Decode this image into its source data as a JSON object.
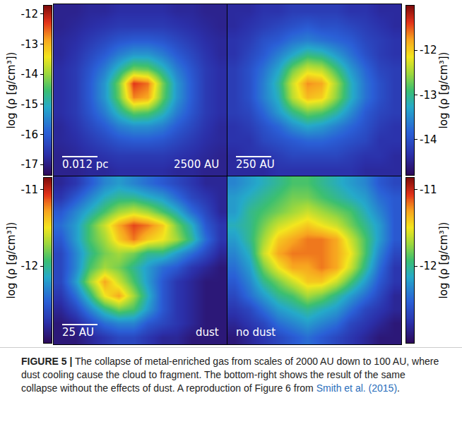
{
  "chart_data": {
    "type": "heatmap",
    "tick_labels": false,
    "panels": [
      {
        "scale_bar": "0.012 pc",
        "scale_bar_alt": "2500 AU",
        "colorbar": {
          "range": [
            -17.35,
            -11.72
          ],
          "ticks": [
            -12,
            -13,
            -14,
            -15,
            -16,
            -17
          ],
          "title": "log (ρ [g/cm³])"
        },
        "cells": [
          [
            -16.9,
            -16.9,
            -16.8,
            -16.8,
            -16.7,
            -16.7,
            -16.7,
            -16.7,
            -16.8,
            -16.8,
            -16.9,
            -16.9
          ],
          [
            -16.9,
            -16.8,
            -16.7,
            -16.6,
            -16.5,
            -16.5,
            -16.5,
            -16.5,
            -16.6,
            -16.7,
            -16.8,
            -16.9
          ],
          [
            -16.8,
            -16.7,
            -16.5,
            -16.3,
            -16.1,
            -16.0,
            -16.0,
            -16.1,
            -16.3,
            -16.5,
            -16.7,
            -16.8
          ],
          [
            -16.8,
            -16.6,
            -16.3,
            -16.0,
            -15.6,
            -15.3,
            -15.3,
            -15.6,
            -16.0,
            -16.3,
            -16.6,
            -16.8
          ],
          [
            -16.7,
            -16.5,
            -16.1,
            -15.6,
            -14.9,
            -14.2,
            -14.3,
            -14.9,
            -15.6,
            -16.1,
            -16.5,
            -16.7
          ],
          [
            -16.7,
            -16.5,
            -16.0,
            -15.3,
            -14.2,
            -12.3,
            -12.6,
            -14.2,
            -15.3,
            -16.0,
            -16.5,
            -16.7
          ],
          [
            -16.7,
            -16.5,
            -16.0,
            -15.3,
            -14.3,
            -12.7,
            -12.9,
            -14.3,
            -15.3,
            -16.0,
            -16.5,
            -16.7
          ],
          [
            -16.7,
            -16.5,
            -16.1,
            -15.6,
            -14.9,
            -14.3,
            -14.4,
            -14.9,
            -15.6,
            -16.1,
            -16.5,
            -16.7
          ],
          [
            -16.8,
            -16.6,
            -16.3,
            -16.0,
            -15.6,
            -15.4,
            -15.4,
            -15.6,
            -16.0,
            -16.3,
            -16.6,
            -16.8
          ],
          [
            -16.8,
            -16.7,
            -16.5,
            -16.3,
            -16.1,
            -16.0,
            -16.0,
            -16.1,
            -16.3,
            -16.5,
            -16.7,
            -16.8
          ],
          [
            -16.9,
            -16.8,
            -16.7,
            -16.6,
            -16.5,
            -16.5,
            -16.5,
            -16.5,
            -16.6,
            -16.7,
            -16.8,
            -16.9
          ],
          [
            -16.9,
            -16.9,
            -16.8,
            -16.8,
            -16.7,
            -16.7,
            -16.7,
            -16.7,
            -16.8,
            -16.8,
            -16.9,
            -16.9
          ]
        ]
      },
      {
        "scale_bar": "250 AU",
        "colorbar": {
          "range": [
            -14.8,
            -11.0
          ],
          "ticks": [
            -12,
            -13,
            -14
          ],
          "title": "log (ρ [g/cm³])"
        },
        "cells": [
          [
            -14.4,
            -14.4,
            -14.3,
            -14.3,
            -14.2,
            -14.2,
            -14.2,
            -14.2,
            -14.3,
            -14.3,
            -14.4,
            -14.4
          ],
          [
            -14.4,
            -14.3,
            -14.2,
            -14.1,
            -14.0,
            -13.9,
            -14.0,
            -14.0,
            -14.1,
            -14.2,
            -14.3,
            -14.4
          ],
          [
            -14.3,
            -14.2,
            -14.0,
            -13.9,
            -13.7,
            -13.6,
            -13.7,
            -13.8,
            -13.9,
            -14.1,
            -14.2,
            -14.3
          ],
          [
            -14.3,
            -14.1,
            -13.9,
            -13.6,
            -13.3,
            -13.0,
            -13.1,
            -13.4,
            -13.7,
            -14.0,
            -14.2,
            -14.3
          ],
          [
            -14.2,
            -14.0,
            -13.7,
            -13.3,
            -12.7,
            -12.3,
            -12.4,
            -12.9,
            -13.4,
            -13.8,
            -14.1,
            -14.2
          ],
          [
            -14.2,
            -14.0,
            -13.6,
            -13.1,
            -12.3,
            -11.7,
            -11.8,
            -12.5,
            -13.2,
            -13.7,
            -14.0,
            -14.2
          ],
          [
            -14.2,
            -14.0,
            -13.6,
            -13.2,
            -12.4,
            -11.9,
            -12.0,
            -12.6,
            -13.2,
            -13.7,
            -14.0,
            -14.2
          ],
          [
            -14.2,
            -14.1,
            -13.8,
            -13.4,
            -13.0,
            -12.7,
            -12.8,
            -13.1,
            -13.5,
            -13.9,
            -14.1,
            -14.2
          ],
          [
            -14.3,
            -14.2,
            -14.0,
            -13.8,
            -13.5,
            -13.3,
            -13.4,
            -13.6,
            -13.8,
            -14.0,
            -14.2,
            -14.3
          ],
          [
            -14.3,
            -14.3,
            -14.1,
            -14.0,
            -13.9,
            -13.8,
            -13.8,
            -13.9,
            -14.0,
            -14.1,
            -14.3,
            -14.3
          ],
          [
            -14.4,
            -14.3,
            -14.3,
            -14.2,
            -14.1,
            -14.1,
            -14.1,
            -14.1,
            -14.2,
            -14.3,
            -14.3,
            -14.4
          ],
          [
            -14.4,
            -14.4,
            -14.4,
            -14.3,
            -14.3,
            -14.3,
            -14.3,
            -14.3,
            -14.3,
            -14.4,
            -14.4,
            -14.4
          ]
        ]
      },
      {
        "scale_bar": "25 AU",
        "label": "dust",
        "colorbar": {
          "range": [
            -13.0,
            -10.85
          ],
          "ticks": [
            -11,
            -12
          ],
          "title": "log (ρ [g/cm³])"
        },
        "cells": [
          [
            -12.8,
            -12.7,
            -12.5,
            -12.3,
            -12.2,
            -12.3,
            -12.4,
            -12.5,
            -12.6,
            -12.7,
            -12.8,
            -12.8
          ],
          [
            -12.7,
            -12.5,
            -12.3,
            -12.1,
            -12.0,
            -12.0,
            -12.1,
            -12.2,
            -12.4,
            -12.6,
            -12.7,
            -12.8
          ],
          [
            -12.5,
            -12.3,
            -12.1,
            -11.9,
            -11.7,
            -11.6,
            -11.7,
            -11.9,
            -12.1,
            -12.4,
            -12.6,
            -12.8
          ],
          [
            -12.4,
            -12.2,
            -11.9,
            -11.6,
            -11.3,
            -11.1,
            -11.2,
            -11.4,
            -11.8,
            -12.1,
            -12.5,
            -12.7
          ],
          [
            -12.5,
            -12.2,
            -11.9,
            -11.7,
            -11.4,
            -11.2,
            -11.4,
            -11.5,
            -11.7,
            -12.0,
            -12.4,
            -12.7
          ],
          [
            -12.6,
            -12.3,
            -12.0,
            -11.8,
            -11.7,
            -11.8,
            -12.0,
            -12.0,
            -12.2,
            -12.4,
            -12.6,
            -12.8
          ],
          [
            -12.6,
            -12.3,
            -11.9,
            -11.7,
            -11.8,
            -12.0,
            -12.2,
            -12.4,
            -12.5,
            -12.7,
            -12.8,
            -12.9
          ],
          [
            -12.6,
            -12.2,
            -11.7,
            -11.3,
            -11.6,
            -11.9,
            -12.2,
            -12.5,
            -12.7,
            -12.8,
            -12.9,
            -12.9
          ],
          [
            -12.7,
            -12.4,
            -12.0,
            -11.5,
            -11.3,
            -11.7,
            -12.1,
            -12.5,
            -12.7,
            -12.8,
            -12.9,
            -12.9
          ],
          [
            -12.8,
            -12.6,
            -12.3,
            -12.0,
            -11.8,
            -11.9,
            -12.2,
            -12.5,
            -12.7,
            -12.8,
            -12.9,
            -12.9
          ],
          [
            -12.9,
            -12.8,
            -12.6,
            -12.4,
            -12.3,
            -12.3,
            -12.5,
            -12.6,
            -12.7,
            -12.8,
            -12.9,
            -12.9
          ],
          [
            -12.9,
            -12.9,
            -12.8,
            -12.7,
            -12.6,
            -12.6,
            -12.7,
            -12.8,
            -12.8,
            -12.9,
            -12.9,
            -12.9
          ]
        ]
      },
      {
        "label": "no dust",
        "colorbar": {
          "range": [
            -13.0,
            -10.85
          ],
          "ticks": [
            -11,
            -12
          ],
          "title": "log (ρ [g/cm³])"
        },
        "cells": [
          [
            -12.3,
            -12.2,
            -12.1,
            -12.0,
            -11.9,
            -11.9,
            -12.0,
            -12.1,
            -12.2,
            -12.3,
            -12.5,
            -12.6
          ],
          [
            -12.2,
            -12.1,
            -12.0,
            -11.9,
            -11.8,
            -11.8,
            -11.9,
            -12.0,
            -12.1,
            -12.2,
            -12.4,
            -12.5
          ],
          [
            -12.2,
            -12.0,
            -11.9,
            -11.8,
            -11.7,
            -11.6,
            -11.7,
            -11.8,
            -11.9,
            -12.1,
            -12.3,
            -12.5
          ],
          [
            -12.1,
            -12.0,
            -11.8,
            -11.6,
            -11.5,
            -11.4,
            -11.5,
            -11.6,
            -11.8,
            -12.0,
            -12.2,
            -12.5
          ],
          [
            -12.2,
            -12.0,
            -11.7,
            -11.4,
            -11.3,
            -11.2,
            -11.2,
            -11.3,
            -11.6,
            -11.9,
            -12.2,
            -12.5
          ],
          [
            -12.3,
            -12.1,
            -11.6,
            -11.3,
            -11.2,
            -11.2,
            -11.2,
            -11.3,
            -11.5,
            -11.9,
            -12.3,
            -12.6
          ],
          [
            -12.4,
            -12.2,
            -11.8,
            -11.5,
            -11.3,
            -11.3,
            -11.2,
            -11.3,
            -11.6,
            -12.0,
            -12.4,
            -12.7
          ],
          [
            -12.5,
            -12.3,
            -12.0,
            -11.8,
            -11.6,
            -11.4,
            -11.4,
            -11.6,
            -11.9,
            -12.2,
            -12.5,
            -12.7
          ],
          [
            -12.6,
            -12.4,
            -12.2,
            -12.0,
            -11.9,
            -11.7,
            -11.8,
            -12.0,
            -12.2,
            -12.4,
            -12.6,
            -12.8
          ],
          [
            -12.7,
            -12.6,
            -12.4,
            -12.2,
            -12.1,
            -12.0,
            -12.1,
            -12.2,
            -12.4,
            -12.6,
            -12.7,
            -12.8
          ],
          [
            -12.8,
            -12.7,
            -12.6,
            -12.4,
            -12.3,
            -12.2,
            -12.3,
            -12.4,
            -12.6,
            -12.7,
            -12.8,
            -12.9
          ],
          [
            -12.9,
            -12.8,
            -12.7,
            -12.6,
            -12.5,
            -12.4,
            -12.5,
            -12.6,
            -12.7,
            -12.8,
            -12.9,
            -12.9
          ]
        ]
      }
    ]
  },
  "caption": {
    "label": "FIGURE 5 |",
    "text": "The collapse of metal-enriched gas from scales of 2000 AU down to 100 AU, where dust cooling cause the cloud to fragment. The bottom-right shows the result of the same collapse without the effects of dust. A reproduction of Figure 6 from ",
    "citation": "Smith et al. (2015)",
    "end": "."
  }
}
